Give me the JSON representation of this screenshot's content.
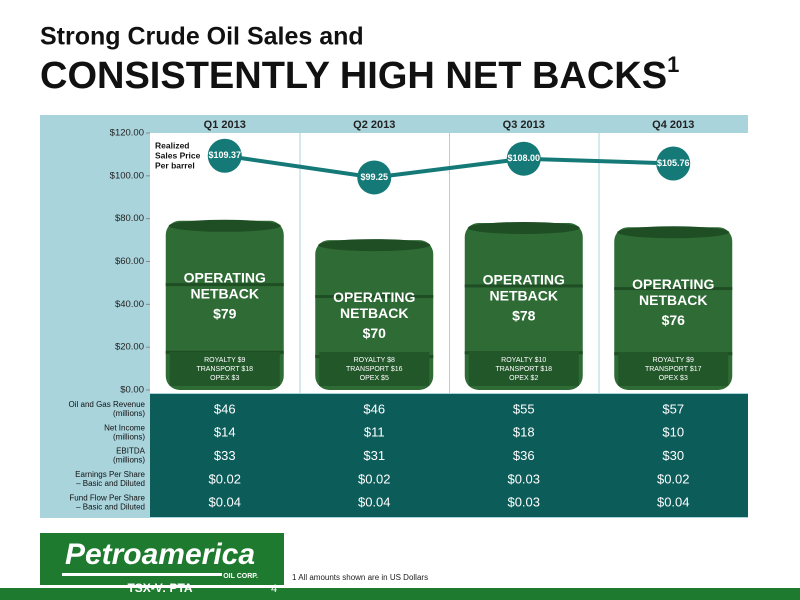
{
  "chart_data": {
    "type": "bar",
    "title": "Strong Crude Oil Sales and",
    "subtitle": "CONSISTENTLY HIGH NET BACKS",
    "title_note": "1",
    "categories": [
      "Q1 2013",
      "Q2 2013",
      "Q3 2013",
      "Q4 2013"
    ],
    "ylim": [
      0,
      120
    ],
    "yticks": [
      {
        "value": 0,
        "label": "$0.00"
      },
      {
        "value": 20,
        "label": "$20.00"
      },
      {
        "value": 40,
        "label": "$40.00"
      },
      {
        "value": 60,
        "label": "$60.00"
      },
      {
        "value": 80,
        "label": "$80.00"
      },
      {
        "value": 100,
        "label": "$100.00"
      },
      {
        "value": 120,
        "label": "$120.00"
      }
    ],
    "series": [
      {
        "name_lines": [
          "OPERATING",
          "NETBACK"
        ],
        "color": "#2f6b35",
        "values": [
          79,
          70,
          78,
          76
        ],
        "value_labels": [
          "$79",
          "$70",
          "$78",
          "$76"
        ]
      },
      {
        "name_lines": [
          "Realized",
          "Sales Price",
          "Per barrel"
        ],
        "type": "line",
        "color": "#157a77",
        "values": [
          109.37,
          99.25,
          108.0,
          105.76
        ],
        "value_labels": [
          "$109.37",
          "$99.25",
          "$108.00",
          "$105.76"
        ]
      }
    ],
    "costs": [
      [
        "ROYALTY $9",
        "TRANSPORT $18",
        "OPEX $3"
      ],
      [
        "ROYALTY $8",
        "TRANSPORT $16",
        "OPEX $5"
      ],
      [
        "ROYALTY $10",
        "TRANSPORT $18",
        "OPEX $2"
      ],
      [
        "ROYALTY $9",
        "TRANSPORT $17",
        "OPEX $3"
      ]
    ]
  },
  "table": {
    "rows": [
      {
        "label": [
          "Oil and Gas Revenue",
          "(millions)"
        ],
        "cells": [
          "$46",
          "$46",
          "$55",
          "$57"
        ]
      },
      {
        "label": [
          "Net Income",
          "(millions)"
        ],
        "cells": [
          "$14",
          "$11",
          "$18",
          "$10"
        ]
      },
      {
        "label": [
          "EBITDA",
          "(millions)"
        ],
        "cells": [
          "$33",
          "$31",
          "$36",
          "$30"
        ]
      },
      {
        "label": [
          "Earnings Per Share",
          "– Basic and Diluted"
        ],
        "cells": [
          "$0.02",
          "$0.02",
          "$0.03",
          "$0.02"
        ]
      },
      {
        "label": [
          "Fund Flow Per Share",
          "– Basic and Diluted"
        ],
        "cells": [
          "$0.04",
          "$0.04",
          "$0.03",
          "$0.04"
        ]
      }
    ]
  },
  "footer": {
    "logo": "Petroamerica",
    "logo_sub": "OIL CORP.",
    "ticker": "TSX-V: PTA",
    "page": "4",
    "footnote": "1 All amounts shown are in US Dollars"
  }
}
